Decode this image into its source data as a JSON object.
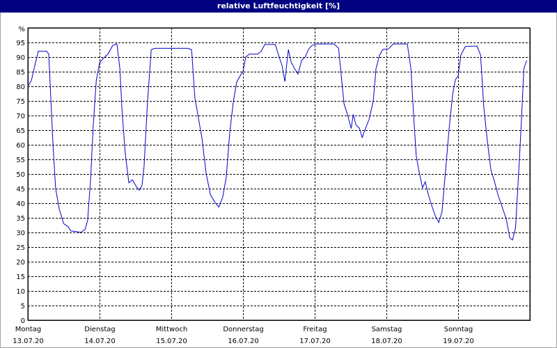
{
  "chart_data": {
    "type": "line",
    "title": "relative Luftfeuchtigkeit [%]",
    "y_label": "%",
    "xlim": [
      0,
      168
    ],
    "xticks": [
      {
        "value": 0,
        "label": "Montag"
      },
      {
        "value": 24,
        "label": "Dienstag"
      },
      {
        "value": 48,
        "label": "Mittwoch"
      },
      {
        "value": 72,
        "label": "Donnerstag"
      },
      {
        "value": 96,
        "label": "Freitag"
      },
      {
        "value": 120,
        "label": "Samstag"
      },
      {
        "value": 144,
        "label": "Sonntag"
      }
    ],
    "xtick_dates": [
      "13.07.20",
      "14.07.20",
      "15.07.20",
      "16.07.20",
      "17.07.20",
      "18.07.20",
      "19.07.20"
    ],
    "ylim": [
      0,
      100
    ],
    "yticks": [
      0,
      5,
      10,
      15,
      20,
      25,
      30,
      35,
      40,
      45,
      50,
      55,
      60,
      65,
      70,
      75,
      80,
      85,
      90,
      95
    ],
    "grid": true,
    "series": [
      {
        "name": "relative Luftfeuchtigkeit",
        "color": "#0000c8",
        "x": [
          0,
          1.2,
          2.3,
          3.5,
          4.7,
          6.3,
          7,
          7.7,
          8.4,
          9.3,
          10.5,
          12,
          13.5,
          14.4,
          16.3,
          17.7,
          19.1,
          20,
          21,
          21.9,
          22.9,
          24,
          25.2,
          26.8,
          28.4,
          29.8,
          30.8,
          31.5,
          32.6,
          33.8,
          35,
          36.1,
          37.3,
          38.2,
          38.9,
          40,
          41.3,
          42.4,
          53.6,
          54.8,
          55.9,
          57.1,
          58.3,
          59.7,
          61.1,
          62.5,
          63.9,
          65.2,
          66.4,
          67.6,
          68.8,
          69.9,
          71.3,
          72,
          72.9,
          74.1,
          76.9,
          78.1,
          79.3,
          82.8,
          83.9,
          85.1,
          86,
          87.2,
          88.1,
          89.3,
          90.4,
          91.6,
          92.8,
          93.9,
          95.1,
          96.7,
          102.5,
          104,
          104.9,
          105.8,
          106.8,
          108.2,
          108.9,
          109.8,
          111,
          111.9,
          113,
          114.2,
          115.6,
          116.5,
          117.7,
          118.8,
          120.7,
          122.3,
          127,
          128.2,
          129.3,
          130,
          130.9,
          132.1,
          133,
          134,
          135.1,
          136.3,
          137.5,
          138.6,
          139.8,
          141,
          142.2,
          143.1,
          144,
          144.9,
          146.4,
          150.3,
          151.5,
          152.6,
          153.8,
          155,
          156.1,
          157.3,
          158.5,
          160.1,
          161.3,
          162.2,
          163.2,
          164.1,
          165,
          166,
          166.9
        ],
        "values": [
          80,
          82,
          87,
          92,
          92,
          92,
          91,
          76,
          60,
          45,
          38,
          33,
          32,
          30.5,
          30.3,
          30,
          31,
          34,
          48,
          67,
          82,
          88,
          89.5,
          91,
          94,
          94.5,
          86,
          72,
          57,
          47,
          48,
          46,
          44.5,
          46,
          52.5,
          74,
          92.5,
          93,
          93,
          92.5,
          76,
          69,
          62,
          50,
          43,
          40.5,
          38.7,
          42,
          49,
          64.5,
          75,
          81.5,
          84,
          85,
          90,
          91,
          91,
          92,
          94.3,
          94.3,
          90.7,
          87,
          81.6,
          92.6,
          88.3,
          86,
          84.2,
          88.8,
          90,
          92.6,
          94,
          94.5,
          94.5,
          93,
          83.5,
          74,
          71,
          65.6,
          70.4,
          66.8,
          65.6,
          62.5,
          65.6,
          68.7,
          75,
          86,
          90.7,
          92.6,
          92.8,
          94.5,
          94.5,
          86,
          66.8,
          56,
          51,
          45.3,
          47.3,
          43,
          39.4,
          35.8,
          33.4,
          37,
          51.3,
          65.6,
          77.6,
          82.3,
          83.5,
          90.7,
          93.6,
          93.8,
          90.7,
          72.8,
          60.9,
          51.3,
          47.7,
          43,
          39.4,
          34.6,
          28.2,
          27.4,
          31.5,
          47.7,
          64.4,
          86,
          88.8
        ]
      }
    ]
  }
}
